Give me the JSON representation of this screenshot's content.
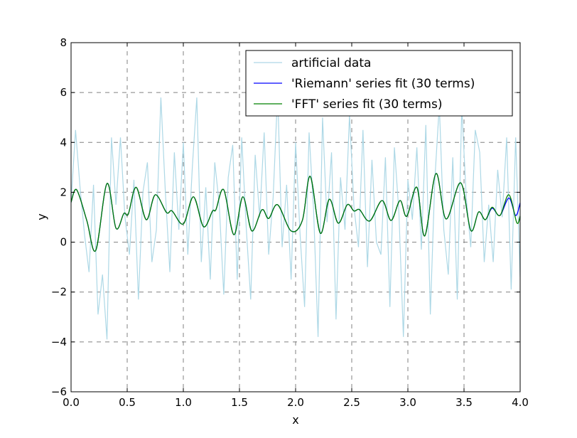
{
  "chart_data": {
    "type": "line",
    "title": "",
    "xlabel": "x",
    "ylabel": "y",
    "xlim": [
      0,
      4
    ],
    "ylim": [
      -6,
      8
    ],
    "xticks": [
      "0.0",
      "0.5",
      "1.0",
      "1.5",
      "2.0",
      "2.5",
      "3.0",
      "3.5",
      "4.0"
    ],
    "xtick_values": [
      0,
      0.5,
      1,
      1.5,
      2,
      2.5,
      3,
      3.5,
      4
    ],
    "yticks": [
      "−6",
      "−4",
      "−2",
      "0",
      "2",
      "4",
      "6",
      "8"
    ],
    "ytick_values": [
      -6,
      -4,
      -2,
      0,
      2,
      4,
      6,
      8
    ],
    "grid": true,
    "legend_position": "top-right",
    "series": [
      {
        "name": "artificial data",
        "color": "#add8e6",
        "x_range": [
          0,
          4
        ],
        "values": [
          1.6,
          4.5,
          2.2,
          0.3,
          -1.2,
          2.3,
          -2.9,
          -1.3,
          -3.9,
          4.2,
          1.5,
          4.2,
          1.0,
          -0.5,
          2.5,
          -2.3,
          2.0,
          3.2,
          -0.8,
          0.5,
          5.8,
          2.0,
          -1.2,
          3.6,
          0.5,
          4.0,
          -0.5,
          3.0,
          5.8,
          -0.8,
          2.2,
          -1.5,
          3.2,
          1.5,
          -2.1,
          2.6,
          3.9,
          -1.5,
          4.2,
          0.6,
          -2.3,
          3.5,
          1.0,
          4.4,
          -0.5,
          1.8,
          6.0,
          -0.2,
          2.3,
          -1.5,
          4.0,
          0.3,
          -2.6,
          4.4,
          1.3,
          -3.8,
          5.0,
          0.8,
          3.6,
          -3.1,
          2.6,
          0.5,
          5.1,
          1.4,
          -0.2,
          4.5,
          -1.0,
          3.3,
          0.0,
          -0.5,
          3.4,
          -2.6,
          3.8,
          1.2,
          -3.8,
          2.5,
          0.9,
          3.8,
          -0.3,
          4.7,
          -2.9,
          2.5,
          5.5,
          0.5,
          -1.3,
          3.4,
          -2.3,
          5.4,
          1.8,
          -0.2,
          4.5,
          3.6,
          -0.8,
          1.5,
          -0.8,
          2.9,
          1.0,
          4.2,
          -1.9,
          4.2,
          -1.4
        ]
      },
      {
        "name": "'Riemann' series fit (30 terms)",
        "color": "#0000ff",
        "x": [
          0,
          0.05,
          0.14,
          0.22,
          0.32,
          0.4,
          0.47,
          0.51,
          0.58,
          0.67,
          0.75,
          0.85,
          0.9,
          1.0,
          1.09,
          1.18,
          1.26,
          1.29,
          1.36,
          1.45,
          1.53,
          1.61,
          1.7,
          1.76,
          1.84,
          1.96,
          2.06,
          2.13,
          2.22,
          2.3,
          2.38,
          2.46,
          2.52,
          2.57,
          2.66,
          2.77,
          2.85,
          2.93,
          2.99,
          3.08,
          3.15,
          3.25,
          3.34,
          3.47,
          3.56,
          3.63,
          3.69,
          3.75,
          3.82,
          3.9,
          3.96,
          4.0
        ],
        "y": [
          1.6,
          2.1,
          0.87,
          -0.33,
          2.35,
          0.56,
          1.15,
          1.13,
          2.2,
          0.9,
          1.9,
          1.19,
          1.25,
          0.73,
          1.82,
          0.62,
          1.25,
          1.3,
          2.1,
          0.3,
          1.82,
          0.45,
          1.3,
          0.95,
          1.5,
          0.45,
          0.87,
          2.64,
          0.36,
          1.72,
          0.76,
          1.5,
          1.25,
          1.3,
          0.85,
          1.67,
          0.87,
          1.67,
          1.04,
          2.2,
          0.25,
          2.75,
          0.93,
          2.38,
          0.47,
          1.21,
          0.9,
          1.36,
          1.07,
          1.77,
          1.07,
          1.58
        ]
      },
      {
        "name": "'FFT' series fit (30 terms)",
        "color": "#008000",
        "x": [
          0,
          0.05,
          0.14,
          0.22,
          0.32,
          0.4,
          0.47,
          0.51,
          0.58,
          0.67,
          0.75,
          0.85,
          0.9,
          1.0,
          1.09,
          1.18,
          1.26,
          1.29,
          1.36,
          1.45,
          1.53,
          1.61,
          1.7,
          1.76,
          1.84,
          1.96,
          2.06,
          2.13,
          2.22,
          2.3,
          2.38,
          2.46,
          2.52,
          2.57,
          2.66,
          2.77,
          2.85,
          2.93,
          2.99,
          3.08,
          3.15,
          3.25,
          3.34,
          3.47,
          3.56,
          3.63,
          3.69,
          3.75,
          3.82,
          3.9,
          3.97,
          4.0
        ],
        "y": [
          1.6,
          2.1,
          0.87,
          -0.33,
          2.35,
          0.56,
          1.15,
          1.13,
          2.2,
          0.9,
          1.9,
          1.19,
          1.25,
          0.73,
          1.82,
          0.62,
          1.25,
          1.3,
          2.1,
          0.3,
          1.82,
          0.45,
          1.3,
          0.95,
          1.5,
          0.45,
          0.87,
          2.64,
          0.36,
          1.72,
          0.76,
          1.5,
          1.25,
          1.3,
          0.85,
          1.67,
          0.87,
          1.67,
          1.04,
          2.2,
          0.25,
          2.75,
          0.93,
          2.38,
          0.47,
          1.21,
          0.9,
          1.4,
          1.07,
          1.9,
          0.78,
          1.05
        ]
      }
    ]
  }
}
